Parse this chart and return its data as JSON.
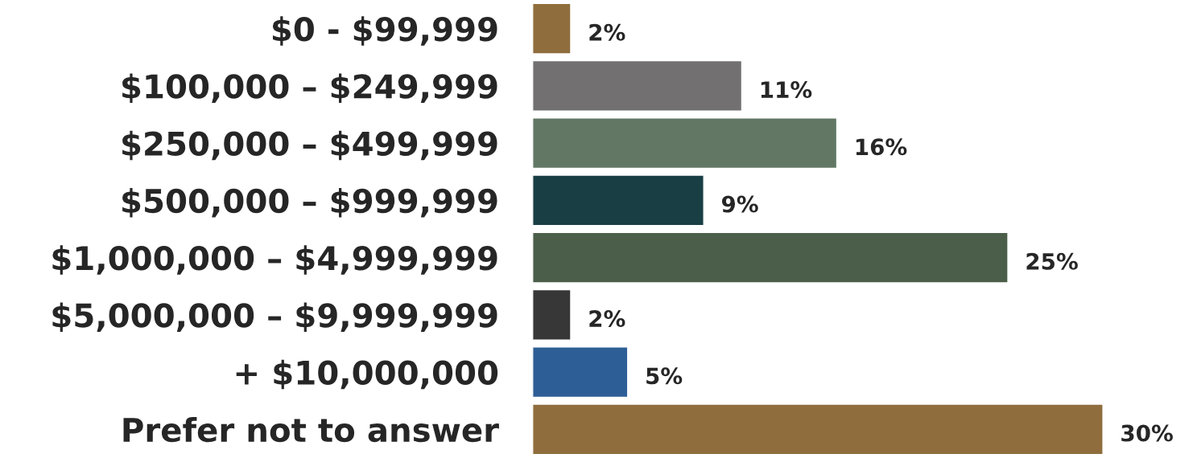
{
  "chart_data": {
    "type": "bar",
    "orientation": "horizontal",
    "categories": [
      "$0 - $99,999",
      "$100,000 – $249,999",
      "$250,000 – $499,999",
      "$500,000 – $999,999",
      "$1,000,000 – $4,999,999",
      "$5,000,000 – $9,999,999",
      "+ $10,000,000",
      "Prefer not to answer"
    ],
    "values": [
      2,
      11,
      16,
      9,
      25,
      2,
      5,
      30
    ],
    "colors": [
      "#8f6d3d",
      "#727071",
      "#627764",
      "#193f45",
      "#4a5e4a",
      "#373737",
      "#2e5e96",
      "#8f6d3d"
    ],
    "value_labels": [
      "2%",
      "11%",
      "16%",
      "9%",
      "25%",
      "2%",
      "5%",
      "30%"
    ],
    "grid": false,
    "legend": false
  }
}
